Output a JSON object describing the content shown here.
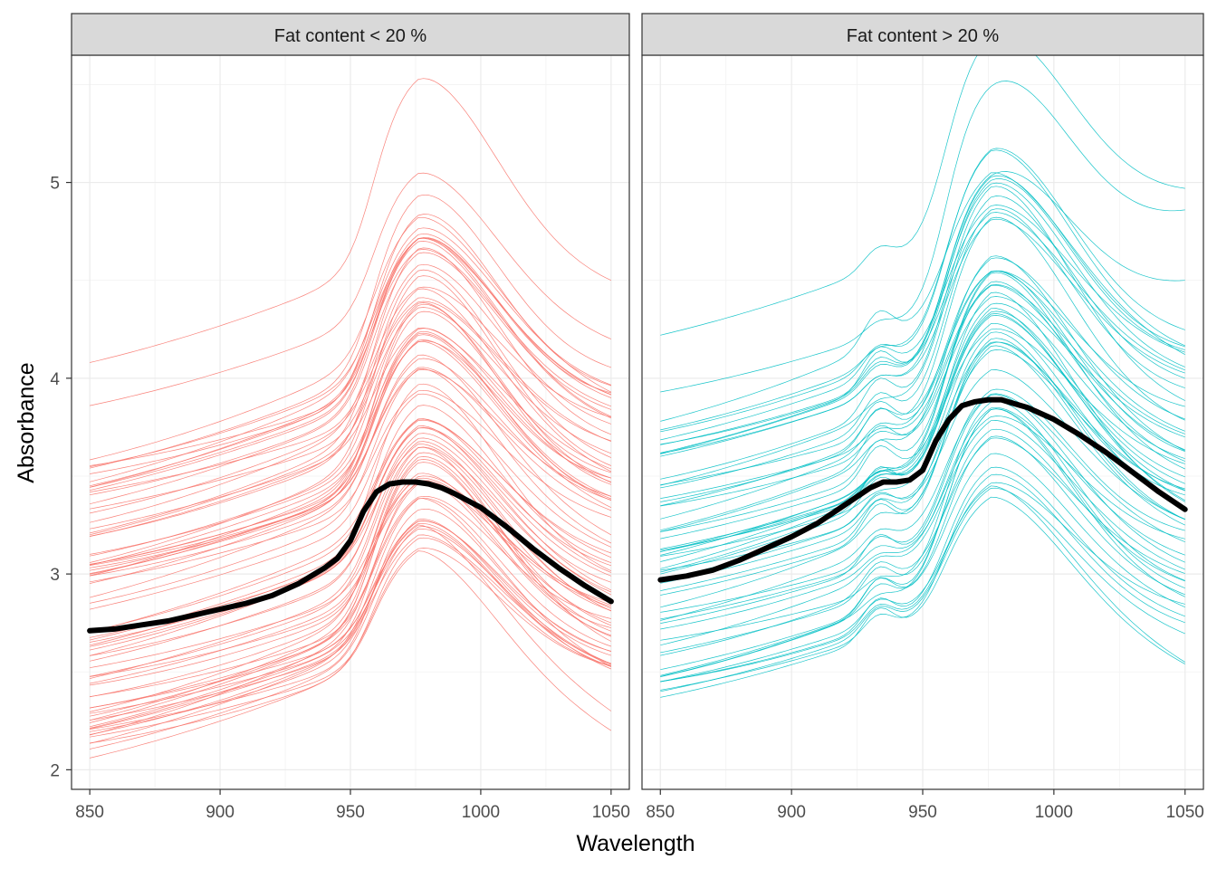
{
  "chart_data": {
    "type": "line",
    "xlabel": "Wavelength",
    "ylabel": "Absorbance",
    "xlim": [
      843,
      1057
    ],
    "ylim": [
      1.9,
      5.65
    ],
    "x_ticks": [
      850,
      900,
      950,
      1000,
      1050
    ],
    "x_tick_labels": [
      "850",
      "900",
      "950",
      "1000",
      "1050"
    ],
    "y_ticks": [
      2,
      3,
      4,
      5
    ],
    "y_tick_labels": [
      "2",
      "3",
      "4",
      "5"
    ],
    "grid": true,
    "legend": "none",
    "mean_line_color": "#000000",
    "panels": [
      {
        "strip_label": "Fat content < 20 %",
        "color": "#F8766D",
        "sample_count": 80,
        "shape": "low",
        "mean_spectrum": {
          "x": [
            850,
            860,
            870,
            880,
            890,
            900,
            910,
            920,
            930,
            940,
            945,
            950,
            955,
            960,
            965,
            970,
            975,
            980,
            985,
            990,
            1000,
            1010,
            1020,
            1030,
            1040,
            1050
          ],
          "y": [
            2.71,
            2.72,
            2.74,
            2.76,
            2.79,
            2.82,
            2.85,
            2.89,
            2.95,
            3.03,
            3.08,
            3.17,
            3.32,
            3.42,
            3.46,
            3.47,
            3.47,
            3.46,
            3.44,
            3.41,
            3.34,
            3.24,
            3.13,
            3.03,
            2.94,
            2.86
          ]
        },
        "sample_endpoints": [
          {
            "start": 4.08,
            "peak": 5.31,
            "end": 4.5
          },
          {
            "start": 3.86,
            "peak": 4.78,
            "end": 4.2
          },
          {
            "start": 3.45,
            "peak": 4.45,
            "end": 3.9
          },
          {
            "start": 2.88,
            "peak": 3.75,
            "end": 3.2
          },
          {
            "start": 2.22,
            "peak": 2.85,
            "end": 2.3
          },
          {
            "start": 2.06,
            "peak": 2.73,
            "end": 2.2
          }
        ]
      },
      {
        "strip_label": "Fat content > 20 %",
        "color": "#00BFC4",
        "sample_count": 60,
        "shape": "high",
        "mean_spectrum": {
          "x": [
            850,
            860,
            870,
            880,
            890,
            900,
            910,
            920,
            930,
            935,
            940,
            945,
            950,
            955,
            960,
            965,
            970,
            975,
            980,
            985,
            990,
            1000,
            1010,
            1020,
            1030,
            1040,
            1050
          ],
          "y": [
            2.97,
            2.99,
            3.02,
            3.07,
            3.13,
            3.19,
            3.26,
            3.35,
            3.44,
            3.47,
            3.47,
            3.48,
            3.53,
            3.68,
            3.79,
            3.86,
            3.88,
            3.89,
            3.89,
            3.87,
            3.85,
            3.79,
            3.71,
            3.62,
            3.52,
            3.42,
            3.33
          ]
        },
        "sample_endpoints": [
          {
            "start": 4.22,
            "peak": 5.48,
            "end": 4.97
          },
          {
            "start": 3.93,
            "peak": 5.37,
            "end": 4.86
          },
          {
            "start": 3.66,
            "peak": 4.8,
            "end": 4.5
          },
          {
            "start": 3.0,
            "peak": 3.89,
            "end": 3.33
          },
          {
            "start": 2.45,
            "peak": 3.05,
            "end": 2.55
          },
          {
            "start": 2.37,
            "peak": 3.0,
            "end": 2.54
          }
        ]
      }
    ]
  }
}
